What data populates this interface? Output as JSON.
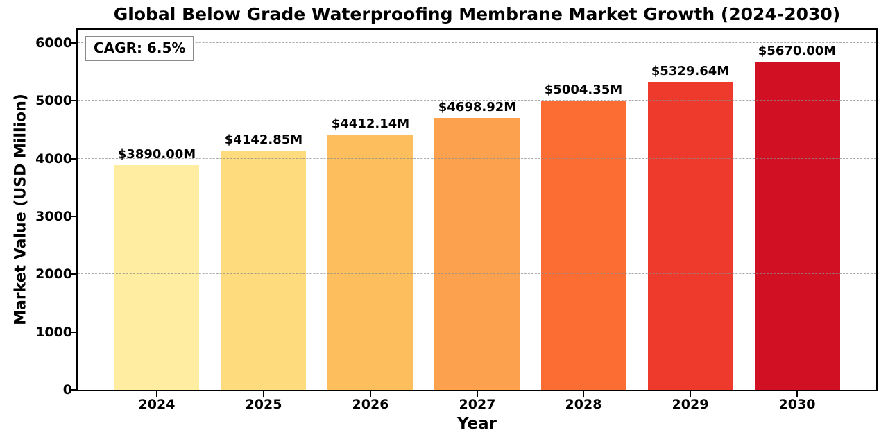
{
  "chart_data": {
    "type": "bar",
    "title": "Global Below Grade Waterproofing Membrane Market Growth (2024-2030)",
    "xlabel": "Year",
    "ylabel": "Market Value (USD Million)",
    "categories": [
      "2024",
      "2025",
      "2026",
      "2027",
      "2028",
      "2029",
      "2030"
    ],
    "values": [
      3890.0,
      4142.85,
      4412.14,
      4698.92,
      5004.35,
      5329.64,
      5670.0
    ],
    "bar_labels": [
      "$3890.00M",
      "$4142.85M",
      "$4412.14M",
      "$4698.92M",
      "$5004.35M",
      "$5329.64M",
      "$5670.00M"
    ],
    "bar_colors": [
      "#ffeda1",
      "#fedc7e",
      "#fdbf5e",
      "#fca24f",
      "#fb6d33",
      "#ee3a2c",
      "#d11024"
    ],
    "y_ticks": [
      0,
      1000,
      2000,
      3000,
      4000,
      5000,
      6000
    ],
    "ylim": [
      0,
      6228
    ],
    "xlim_units": [
      -0.74,
      6.74
    ],
    "bar_width_units": 0.8,
    "grid": {
      "axis": "y",
      "style": "dashed",
      "color": "#8c8c8c"
    },
    "legend": "none",
    "annotation": {
      "label": "CAGR: 6.5%"
    }
  }
}
